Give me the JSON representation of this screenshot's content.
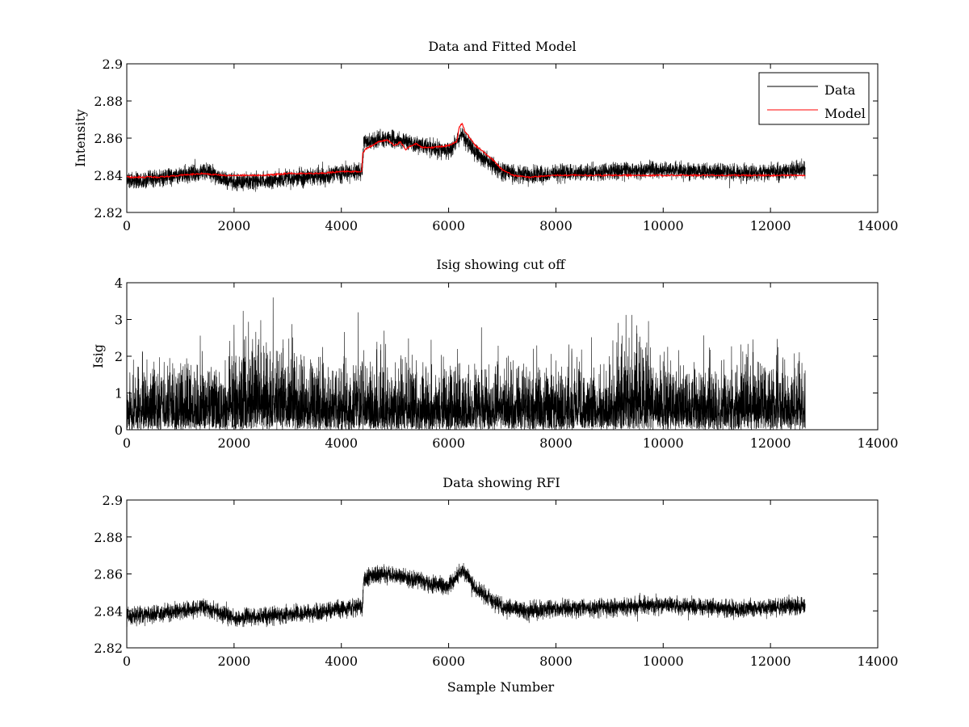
{
  "chart_data": [
    {
      "type": "line",
      "title": "Data and Fitted Model",
      "xlabel": "",
      "ylabel": "Intensity",
      "xlim": [
        0,
        14000
      ],
      "ylim": [
        2.82,
        2.9
      ],
      "xticks": [
        0,
        2000,
        4000,
        6000,
        8000,
        10000,
        12000,
        14000
      ],
      "yticks": [
        2.82,
        2.84,
        2.86,
        2.88,
        2.9
      ],
      "ytick_labels": [
        "2.82",
        "2.84",
        "2.86",
        "2.88",
        "2.9"
      ],
      "n_samples": 12650,
      "legend": {
        "position": "top-right",
        "entries": [
          "Data",
          "Model"
        ]
      },
      "series": [
        {
          "name": "Data",
          "color": "#000000",
          "style": "noisy",
          "noise_amplitude": 0.004,
          "trend": {
            "x": [
              0,
              500,
              1500,
              2000,
              3000,
              4000,
              4390,
              4420,
              4800,
              5200,
              6000,
              6250,
              6500,
              7000,
              7500,
              8000,
              10000,
              11500,
              12650
            ],
            "y": [
              2.837,
              2.838,
              2.842,
              2.836,
              2.838,
              2.841,
              2.842,
              2.858,
              2.86,
              2.858,
              2.853,
              2.862,
              2.852,
              2.842,
              2.84,
              2.841,
              2.843,
              2.841,
              2.843
            ]
          }
        },
        {
          "name": "Model",
          "color": "#ff0000",
          "style": "smooth",
          "points": {
            "x": [
              0,
              600,
              1000,
              1400,
              1800,
              2200,
              2600,
              3000,
              3600,
              4000,
              4380,
              4400,
              4450,
              4700,
              4850,
              5000,
              5100,
              5200,
              5300,
              5400,
              5500,
              5700,
              6000,
              6150,
              6200,
              6250,
              6300,
              6500,
              6800,
              7000,
              7200,
              7500,
              8000,
              9000,
              10000,
              11000,
              12000,
              12650
            ],
            "y": [
              2.839,
              2.839,
              2.84,
              2.841,
              2.84,
              2.84,
              2.84,
              2.841,
              2.841,
              2.842,
              2.842,
              2.852,
              2.854,
              2.858,
              2.859,
              2.856,
              2.858,
              2.854,
              2.856,
              2.857,
              2.855,
              2.855,
              2.856,
              2.858,
              2.866,
              2.868,
              2.864,
              2.856,
              2.849,
              2.843,
              2.84,
              2.839,
              2.84,
              2.84,
              2.84,
              2.84,
              2.84,
              2.84
            ]
          }
        }
      ]
    },
    {
      "type": "line",
      "title": "Isig showing cut off",
      "xlabel": "",
      "ylabel": "Isig",
      "xlim": [
        0,
        14000
      ],
      "ylim": [
        0,
        4
      ],
      "xticks": [
        0,
        2000,
        4000,
        6000,
        8000,
        10000,
        12000,
        14000
      ],
      "yticks": [
        0,
        1,
        2,
        3,
        4
      ],
      "ytick_labels": [
        "0",
        "1",
        "2",
        "3",
        "4"
      ],
      "n_samples": 12650,
      "series": [
        {
          "name": "Isig",
          "color": "#000000",
          "style": "half-normal",
          "scale": 0.8,
          "max": 3.6
        }
      ]
    },
    {
      "type": "line",
      "title": "Data showing RFI",
      "xlabel": "Sample Number",
      "ylabel": "",
      "xlim": [
        0,
        14000
      ],
      "ylim": [
        2.82,
        2.9
      ],
      "xticks": [
        0,
        2000,
        4000,
        6000,
        8000,
        10000,
        12000,
        14000
      ],
      "yticks": [
        2.82,
        2.84,
        2.86,
        2.88,
        2.9
      ],
      "ytick_labels": [
        "2.82",
        "2.84",
        "2.86",
        "2.88",
        "2.9"
      ],
      "n_samples": 12650,
      "series": [
        {
          "name": "Data",
          "color": "#000000",
          "style": "noisy",
          "noise_amplitude": 0.004,
          "trend": {
            "x": [
              0,
              500,
              1500,
              2000,
              3000,
              4000,
              4390,
              4420,
              4800,
              5200,
              6000,
              6250,
              6500,
              7000,
              7500,
              8000,
              10000,
              11500,
              12650
            ],
            "y": [
              2.837,
              2.838,
              2.842,
              2.836,
              2.838,
              2.841,
              2.842,
              2.858,
              2.86,
              2.858,
              2.853,
              2.862,
              2.852,
              2.842,
              2.84,
              2.841,
              2.843,
              2.841,
              2.843
            ]
          }
        }
      ]
    }
  ]
}
